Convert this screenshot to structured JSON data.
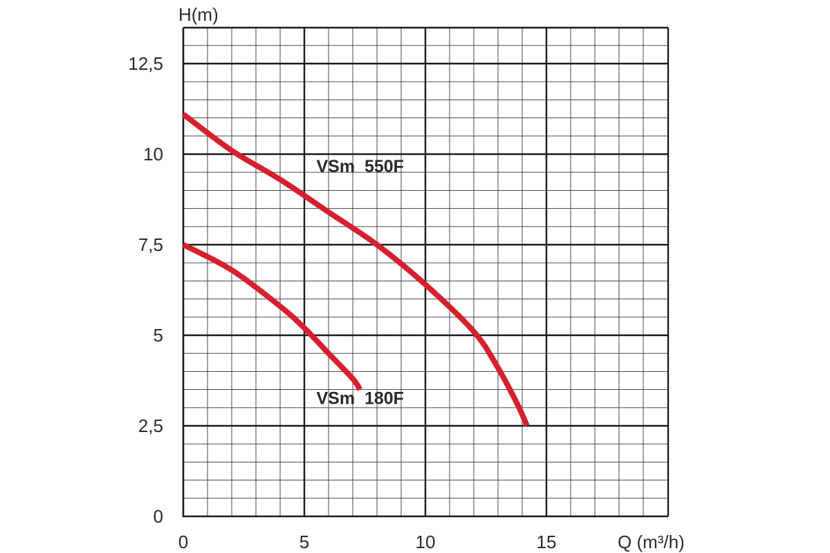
{
  "chart_data": {
    "type": "line",
    "ylabel": "H(m)",
    "xlabel": "Q (m³/h)",
    "xlim": [
      0,
      20
    ],
    "ylim": [
      0,
      13.5
    ],
    "x_ticks": [
      0,
      5,
      10,
      15
    ],
    "x_tick_labels": [
      "0",
      "5",
      "10",
      "15"
    ],
    "y_ticks": [
      0,
      2.5,
      5,
      7.5,
      10,
      12.5
    ],
    "y_tick_labels": [
      "0",
      "2,5",
      "5",
      "7,5",
      "10",
      "12,5"
    ],
    "grid": true,
    "line_color": "#d6202e",
    "series": [
      {
        "name": "VSm  550F",
        "label_at": [
          5.5,
          9.5
        ],
        "points": [
          [
            0,
            11.1
          ],
          [
            2,
            10.1
          ],
          [
            4,
            9.3
          ],
          [
            6,
            8.4
          ],
          [
            8,
            7.5
          ],
          [
            10,
            6.4
          ],
          [
            12,
            5.1
          ],
          [
            13,
            4.1
          ],
          [
            13.8,
            3.1
          ],
          [
            14.2,
            2.5
          ]
        ]
      },
      {
        "name": "VSm  180F",
        "label_at": [
          5.5,
          3.1
        ],
        "points": [
          [
            0,
            7.5
          ],
          [
            2,
            6.8
          ],
          [
            4,
            5.8
          ],
          [
            5,
            5.2
          ],
          [
            6,
            4.5
          ],
          [
            7,
            3.8
          ],
          [
            7.3,
            3.5
          ]
        ]
      }
    ]
  }
}
